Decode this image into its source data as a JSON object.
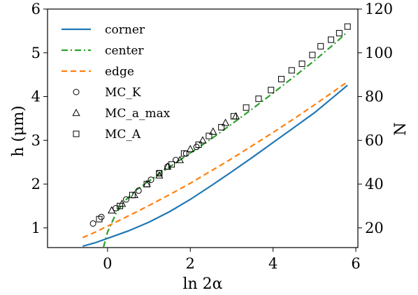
{
  "chart_data": {
    "type": "line",
    "xlabel": "ln 2α",
    "ylabel_left": "h (μm)",
    "ylabel_right": "N",
    "xlim": [
      -1.45,
      6.05
    ],
    "ylim_left": [
      0.55,
      6.0
    ],
    "ylim_right": [
      11.0,
      120.0
    ],
    "x_ticks": [
      0,
      2,
      4,
      6
    ],
    "y_ticks_left": [
      1,
      2,
      3,
      4,
      5,
      6
    ],
    "y_ticks_right": [
      20,
      40,
      60,
      80,
      100,
      120
    ],
    "legend_position": "upper-left",
    "series": [
      {
        "name": "corner",
        "style": "solid",
        "color": "#1f77b4",
        "x": [
          -0.6,
          -0.3,
          0.0,
          0.5,
          1.0,
          1.5,
          2.0,
          2.5,
          3.0,
          3.5,
          4.0,
          4.5,
          5.0,
          5.5,
          5.8
        ],
        "y": [
          0.58,
          0.66,
          0.76,
          0.93,
          1.13,
          1.37,
          1.65,
          1.96,
          2.28,
          2.61,
          2.95,
          3.29,
          3.63,
          4.02,
          4.26
        ]
      },
      {
        "name": "center",
        "style": "dashdot",
        "color": "#2ca02c",
        "x": [
          -0.1,
          0.0,
          0.2,
          0.4,
          0.7,
          1.0,
          1.5,
          2.0,
          2.5,
          3.0,
          3.5,
          4.0,
          4.5,
          5.0,
          5.5,
          5.8
        ],
        "y": [
          0.55,
          0.9,
          1.32,
          1.6,
          1.87,
          2.07,
          2.39,
          2.71,
          3.03,
          3.37,
          3.72,
          4.08,
          4.45,
          4.82,
          5.22,
          5.48
        ]
      },
      {
        "name": "edge",
        "style": "dashed",
        "color": "#ff7f0e",
        "x": [
          -0.6,
          -0.3,
          0.0,
          0.5,
          1.0,
          1.5,
          2.0,
          2.5,
          3.0,
          3.5,
          4.0,
          4.5,
          5.0,
          5.5,
          5.8
        ],
        "y": [
          0.78,
          0.9,
          1.04,
          1.27,
          1.51,
          1.76,
          2.02,
          2.3,
          2.58,
          2.88,
          3.18,
          3.49,
          3.81,
          4.14,
          4.34
        ]
      }
    ],
    "scatter_series": [
      {
        "name": "MC_K",
        "marker": "circle",
        "axis": "right",
        "x": [
          -0.35,
          -0.15,
          0.2,
          0.45,
          0.75,
          1.05,
          1.25,
          1.45,
          1.65,
          1.9,
          2.15
        ],
        "y": [
          22,
          25,
          29,
          33,
          37,
          42,
          45,
          48,
          51,
          54,
          57
        ]
      },
      {
        "name": "MC_a_max",
        "marker": "triangle",
        "axis": "right",
        "x": [
          0.1,
          0.35,
          0.65,
          0.95,
          1.25,
          1.45,
          1.75,
          2.0,
          2.3,
          2.55,
          2.85,
          3.1
        ],
        "y": [
          28,
          31,
          35,
          40,
          44,
          48,
          51,
          56,
          60,
          64,
          68,
          71
        ]
      },
      {
        "name": "MC_A",
        "marker": "square",
        "axis": "right",
        "x": [
          -0.2,
          0.3,
          0.6,
          0.95,
          1.25,
          1.55,
          1.85,
          2.2,
          2.45,
          2.75,
          3.05,
          3.35,
          3.65,
          3.95,
          4.2,
          4.45,
          4.7,
          4.95,
          5.15,
          5.4,
          5.6,
          5.8
        ],
        "y": [
          24,
          30,
          35,
          40,
          45,
          49,
          54,
          58,
          62,
          66,
          71,
          75,
          79,
          83,
          88,
          92,
          95,
          99,
          103,
          106,
          109,
          112
        ]
      }
    ]
  }
}
